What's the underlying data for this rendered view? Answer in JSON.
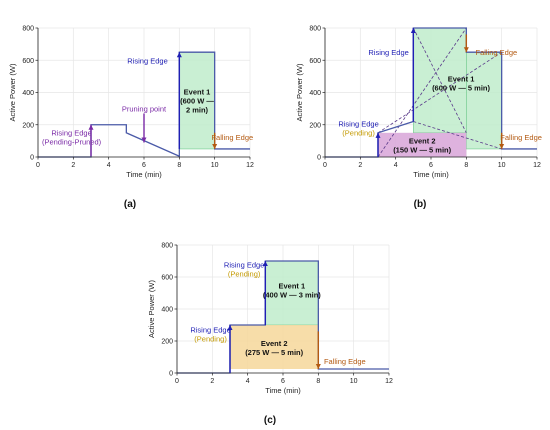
{
  "colors": {
    "line": "#4a5aa8",
    "rising": "#1f1fb4",
    "falling": "#b35a12",
    "pruned": "#7a2aa6",
    "pending": "#c49a00",
    "event_green": "#bfeccb",
    "event_green_edge": "#6fc98a",
    "event_purple": "#d8a5d8",
    "event_orange": "#f6d79a",
    "dash": "#5a3a8a",
    "grid": "#e6e6e6"
  },
  "chart_data": [
    {
      "panel": "(a)",
      "type": "line",
      "xlabel": "Time (min)",
      "ylabel": "Active Power (W)",
      "xlim": [
        0,
        12
      ],
      "ylim": [
        0,
        800
      ],
      "xticks": [
        0,
        2,
        4,
        6,
        8,
        10,
        12
      ],
      "yticks": [
        0,
        200,
        400,
        600,
        800
      ],
      "grid": true,
      "series": [
        {
          "x": [
            0,
            3,
            3,
            5,
            5,
            8,
            8,
            10,
            10,
            12
          ],
          "y": [
            0,
            0,
            200,
            200,
            150,
            5,
            650,
            650,
            50,
            50
          ]
        }
      ],
      "events": [
        {
          "x0": 8,
          "x1": 10,
          "y0": 50,
          "y1": 650,
          "fill": "green",
          "label_lines": [
            "Event 1",
            "(600 W —",
            "2 min)"
          ]
        }
      ],
      "annotations": [
        {
          "kind": "arrow-up",
          "x": 3,
          "y0": 5,
          "y1": 200,
          "color": "pruned",
          "lines": [
            "Rising Edge",
            "(Pending-Pruned)"
          ],
          "lx": 1.9,
          "ly": 125,
          "lcolors": [
            "pruned",
            "pruned"
          ]
        },
        {
          "kind": "arrow-down",
          "x": 6,
          "y0": 270,
          "y1": 90,
          "color": "pruned",
          "lines": [
            "Pruning point"
          ],
          "lx": 6.0,
          "ly": 300,
          "lcolors": [
            "pruned"
          ]
        },
        {
          "kind": "arrow-up",
          "x": 8,
          "y0": 50,
          "y1": 650,
          "color": "rising",
          "lines": [
            "Rising Edge"
          ],
          "lx": 6.2,
          "ly": 600,
          "lcolors": [
            "rising"
          ]
        },
        {
          "kind": "arrow-down",
          "x": 10,
          "y0": 150,
          "y1": 50,
          "color": "falling",
          "lines": [
            "Falling Edge"
          ],
          "lx": 11.0,
          "ly": 125,
          "lcolors": [
            "falling"
          ]
        }
      ]
    },
    {
      "panel": "(b)",
      "type": "line",
      "xlabel": "Time (min)",
      "ylabel": "Active Power (W)",
      "xlim": [
        0,
        12
      ],
      "ylim": [
        0,
        800
      ],
      "xticks": [
        0,
        2,
        4,
        6,
        8,
        10,
        12
      ],
      "yticks": [
        0,
        200,
        400,
        600,
        800
      ],
      "grid": true,
      "series": [
        {
          "x": [
            0,
            3,
            3,
            5,
            5,
            8,
            8,
            10,
            10,
            12
          ],
          "y": [
            0,
            0,
            150,
            220,
            800,
            800,
            650,
            650,
            50,
            50
          ]
        }
      ],
      "events": [
        {
          "x0": 5,
          "x1": 8,
          "y0": 150,
          "y1": 800,
          "fill": "green",
          "label_lines": [
            "Event 1",
            "(600 W — 5 min)"
          ],
          "lx": 7.7,
          "ly": 460
        },
        {
          "x0": 8,
          "x1": 10,
          "y0": 50,
          "y1": 650,
          "fill": "green",
          "label_lines": []
        },
        {
          "x0": 3,
          "x1": 8,
          "y0": 0,
          "y1": 150,
          "fill": "purple",
          "label_lines": [
            "Event 2",
            "(150 W — 5 min)"
          ],
          "lx": 5.5,
          "ly": 75
        }
      ],
      "dashed": [
        {
          "x": [
            3,
            8
          ],
          "y": [
            0,
            800
          ]
        },
        {
          "x": [
            3,
            10
          ],
          "y": [
            150,
            650
          ]
        },
        {
          "x": [
            5,
            10
          ],
          "y": [
            220,
            50
          ]
        },
        {
          "x": [
            5,
            8
          ],
          "y": [
            800,
            150
          ]
        }
      ],
      "annotations": [
        {
          "kind": "arrow-up",
          "x": 5,
          "y0": 220,
          "y1": 800,
          "color": "rising",
          "lines": [
            "Rising Edge"
          ],
          "lx": 3.6,
          "ly": 650,
          "lcolors": [
            "rising"
          ]
        },
        {
          "kind": "arrow-up",
          "x": 3,
          "y0": 0,
          "y1": 150,
          "color": "rising",
          "lines": [
            "Rising Edge",
            "(Pending)"
          ],
          "lx": 1.9,
          "ly": 180,
          "lcolors": [
            "rising",
            "pending"
          ]
        },
        {
          "kind": "arrow-down",
          "x": 8,
          "y0": 760,
          "y1": 650,
          "color": "falling",
          "lines": [
            "Falling Edge"
          ],
          "lx": 9.7,
          "ly": 650,
          "lcolors": [
            "falling"
          ]
        },
        {
          "kind": "arrow-down",
          "x": 10,
          "y0": 150,
          "y1": 50,
          "color": "falling",
          "lines": [
            "Falling Edge"
          ],
          "lx": 11.1,
          "ly": 125,
          "lcolors": [
            "falling"
          ]
        }
      ]
    },
    {
      "panel": "(c)",
      "type": "line",
      "xlabel": "Time (min)",
      "ylabel": "Active Power (W)",
      "xlim": [
        0,
        12
      ],
      "ylim": [
        0,
        800
      ],
      "xticks": [
        0,
        2,
        4,
        6,
        8,
        10,
        12
      ],
      "yticks": [
        0,
        200,
        400,
        600,
        800
      ],
      "grid": true,
      "series": [
        {
          "x": [
            0,
            3,
            3,
            5,
            5,
            8,
            8,
            12
          ],
          "y": [
            0,
            0,
            300,
            300,
            700,
            700,
            25,
            25
          ]
        }
      ],
      "events": [
        {
          "x0": 5,
          "x1": 8,
          "y0": 300,
          "y1": 700,
          "fill": "green",
          "label_lines": [
            "Event 1",
            "(400 W — 3 min)"
          ],
          "lx": 6.5,
          "ly": 520
        },
        {
          "x0": 3,
          "x1": 8,
          "y0": 25,
          "y1": 300,
          "fill": "orange",
          "label_lines": [
            "Event 2",
            "(275 W — 5 min)"
          ],
          "lx": 5.5,
          "ly": 160
        }
      ],
      "annotations": [
        {
          "kind": "arrow-up",
          "x": 5,
          "y0": 300,
          "y1": 700,
          "color": "rising",
          "lines": [
            "Rising Edge",
            "(Pending)"
          ],
          "lx": 3.8,
          "ly": 650,
          "lcolors": [
            "rising",
            "pending"
          ]
        },
        {
          "kind": "arrow-up",
          "x": 3,
          "y0": 0,
          "y1": 300,
          "color": "rising",
          "lines": [
            "Rising Edge",
            "(Pending)"
          ],
          "lx": 1.9,
          "ly": 245,
          "lcolors": [
            "rising",
            "pending"
          ]
        },
        {
          "kind": "arrow-down",
          "x": 8,
          "y0": 260,
          "y1": 25,
          "color": "falling",
          "lines": [
            "Falling Edge"
          ],
          "lx": 9.5,
          "ly": 75,
          "lcolors": [
            "falling"
          ]
        }
      ]
    }
  ]
}
